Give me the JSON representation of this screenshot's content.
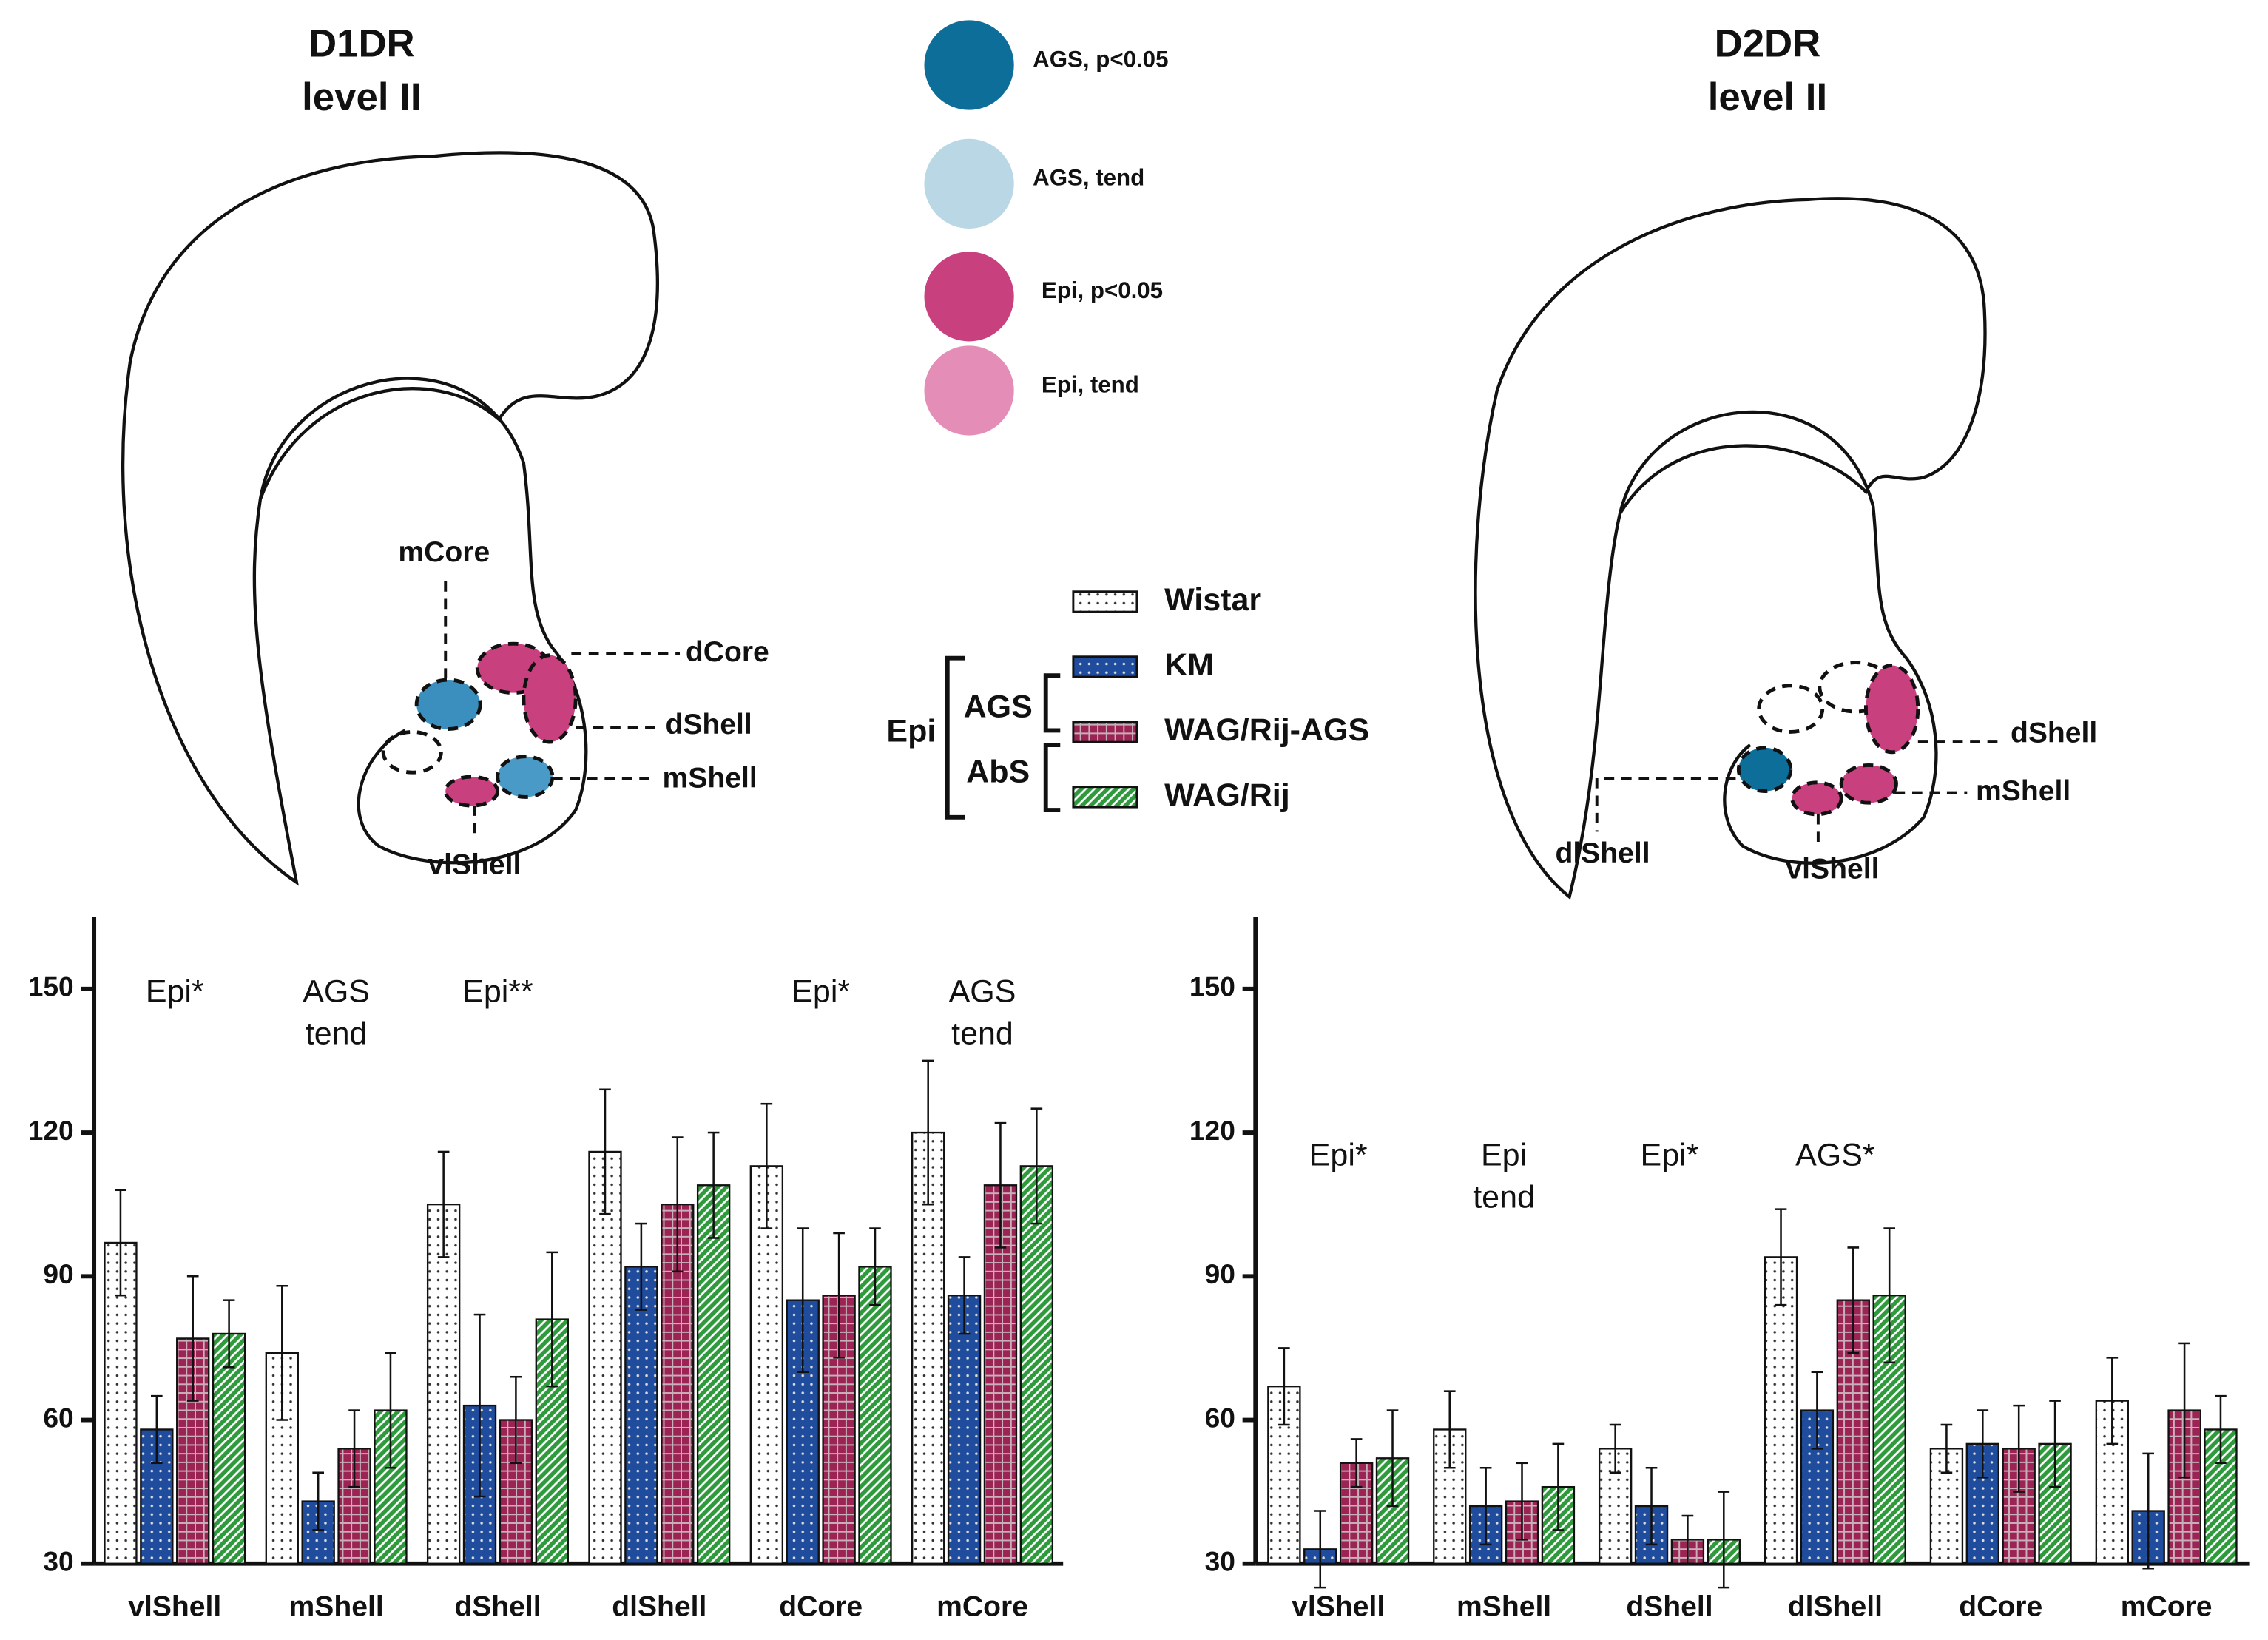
{
  "diagrams": [
    {
      "title": [
        "D1DR",
        "level II"
      ],
      "regions": [
        "mCore",
        "dCore",
        "dShell",
        "mShell",
        "vlShell"
      ]
    },
    {
      "title": [
        "D2DR",
        "level II"
      ],
      "regions": [
        "dShell",
        "mShell",
        "dlShell",
        "vlShell"
      ]
    }
  ],
  "color_key": [
    {
      "label": "AGS, p<0.05",
      "color": "#0d6e9a"
    },
    {
      "label": "AGS, tend",
      "color": "#b9d7e4"
    },
    {
      "label": "Epi, p<0.05",
      "color": "#c8407e"
    },
    {
      "label": "Epi, tend",
      "color": "#e48db6"
    }
  ],
  "groups": {
    "outer": "Epi",
    "inner": [
      "AGS",
      "AbS"
    ]
  },
  "chart_data": [
    {
      "type": "bar",
      "categories": [
        "vlShell",
        "mShell",
        "dShell",
        "dlShell",
        "dCore",
        "mCore"
      ],
      "series": [
        {
          "name": "Wistar",
          "color": "#ffffff",
          "pattern": "dots",
          "values": [
            97,
            74,
            105,
            116,
            113,
            120
          ],
          "errors": [
            11,
            14,
            11,
            13,
            13,
            15
          ]
        },
        {
          "name": "KM",
          "color": "#1f4c9c",
          "pattern": "dots",
          "values": [
            58,
            43,
            63,
            92,
            85,
            86
          ],
          "errors": [
            7,
            6,
            19,
            9,
            15,
            8
          ]
        },
        {
          "name": "WAG/Rij-AGS",
          "color": "#9c2455",
          "pattern": "grid",
          "values": [
            77,
            54,
            60,
            105,
            86,
            109
          ],
          "errors": [
            13,
            8,
            9,
            14,
            13,
            13
          ]
        },
        {
          "name": "WAG/Rij",
          "color": "#2e9a3c",
          "pattern": "hatch",
          "values": [
            78,
            62,
            81,
            109,
            92,
            113
          ],
          "errors": [
            7,
            12,
            14,
            11,
            8,
            12
          ]
        }
      ],
      "ylim": [
        30,
        165
      ],
      "yticks": [
        30,
        60,
        90,
        120,
        150
      ],
      "annotations": [
        [
          "Epi*"
        ],
        [
          "AGS",
          "tend"
        ],
        [
          "Epi**"
        ],
        null,
        [
          "Epi*"
        ],
        [
          "AGS",
          "tend"
        ]
      ]
    },
    {
      "type": "bar",
      "categories": [
        "vlShell",
        "mShell",
        "dShell",
        "dlShell",
        "dCore",
        "mCore"
      ],
      "series": [
        {
          "name": "Wistar",
          "color": "#ffffff",
          "pattern": "dots",
          "values": [
            67,
            58,
            54,
            94,
            54,
            64
          ],
          "errors": [
            8,
            8,
            5,
            10,
            5,
            9
          ]
        },
        {
          "name": "KM",
          "color": "#1f4c9c",
          "pattern": "dots",
          "values": [
            33,
            42,
            42,
            62,
            55,
            41
          ],
          "errors": [
            8,
            8,
            8,
            8,
            7,
            12
          ]
        },
        {
          "name": "WAG/Rij-AGS",
          "color": "#9c2455",
          "pattern": "grid",
          "values": [
            51,
            43,
            35,
            85,
            54,
            62
          ],
          "errors": [
            5,
            8,
            5,
            11,
            9,
            14
          ]
        },
        {
          "name": "WAG/Rij",
          "color": "#2e9a3c",
          "pattern": "hatch",
          "values": [
            52,
            46,
            35,
            86,
            55,
            58
          ],
          "errors": [
            10,
            9,
            10,
            14,
            9,
            7
          ]
        }
      ],
      "ylim": [
        30,
        165
      ],
      "yticks": [
        30,
        60,
        90,
        120,
        150
      ],
      "annotations": [
        [
          "Epi*"
        ],
        [
          "Epi",
          "tend"
        ],
        [
          "Epi*"
        ],
        [
          "AGS*"
        ],
        null,
        null
      ]
    }
  ]
}
